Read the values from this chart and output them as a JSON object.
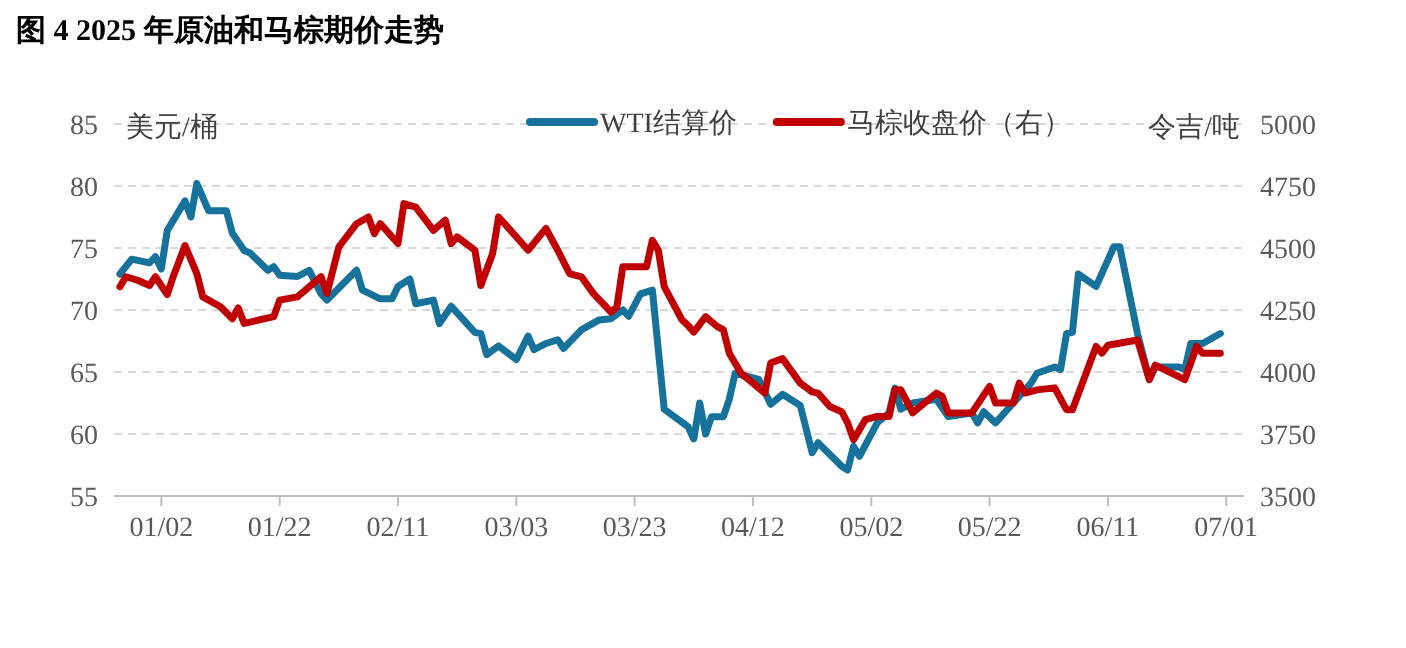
{
  "chart_data": {
    "type": "line",
    "title": "图 4 2025 年原油和马棕期价走势",
    "ylabel": "美元/桶",
    "y2label": "令吉/吨",
    "xlim": [
      "2024-12-25",
      "2025-07-04"
    ],
    "xticks": [
      {
        "value": "2025-01-02",
        "label": "01/02"
      },
      {
        "value": "2025-01-22",
        "label": "01/22"
      },
      {
        "value": "2025-02-11",
        "label": "02/11"
      },
      {
        "value": "2025-03-03",
        "label": "03/03"
      },
      {
        "value": "2025-03-23",
        "label": "03/23"
      },
      {
        "value": "2025-04-12",
        "label": "04/12"
      },
      {
        "value": "2025-05-02",
        "label": "05/02"
      },
      {
        "value": "2025-05-22",
        "label": "05/22"
      },
      {
        "value": "2025-06-11",
        "label": "06/11"
      },
      {
        "value": "2025-07-01",
        "label": "07/01"
      }
    ],
    "ylim": [
      55,
      85
    ],
    "yticks": [
      55,
      60,
      65,
      70,
      75,
      80,
      85
    ],
    "y2lim": [
      3500,
      5000
    ],
    "y2ticks": [
      3500,
      3750,
      4000,
      4250,
      4500,
      4750,
      5000
    ],
    "grid": "y",
    "legend": "top",
    "line_style": "solid",
    "series": [
      {
        "name": "WTI结算价",
        "color": "#17729b",
        "x": [
          "2024-12-26",
          "2024-12-28",
          "2024-12-31",
          "2025-01-01",
          "2025-01-02",
          "2025-01-03",
          "2025-01-06",
          "2025-01-07",
          "2025-01-08",
          "2025-01-10",
          "2025-01-13",
          "2025-01-14",
          "2025-01-16",
          "2025-01-17",
          "2025-01-20",
          "2025-01-21",
          "2025-01-22",
          "2025-01-25",
          "2025-01-27",
          "2025-01-29",
          "2025-01-30",
          "2025-02-04",
          "2025-02-05",
          "2025-02-08",
          "2025-02-10",
          "2025-02-11",
          "2025-02-13",
          "2025-02-14",
          "2025-02-17",
          "2025-02-18",
          "2025-02-20",
          "2025-02-24",
          "2025-02-25",
          "2025-02-26",
          "2025-02-28",
          "2025-03-03",
          "2025-03-05",
          "2025-03-06",
          "2025-03-08",
          "2025-03-10",
          "2025-03-11",
          "2025-03-14",
          "2025-03-17",
          "2025-03-19",
          "2025-03-21",
          "2025-03-22",
          "2025-03-24",
          "2025-03-26",
          "2025-03-28",
          "2025-04-01",
          "2025-04-02",
          "2025-04-03",
          "2025-04-04",
          "2025-04-05",
          "2025-04-07",
          "2025-04-08",
          "2025-04-09",
          "2025-04-13",
          "2025-04-15",
          "2025-04-17",
          "2025-04-20",
          "2025-04-22",
          "2025-04-23",
          "2025-04-27",
          "2025-04-28",
          "2025-04-29",
          "2025-04-30",
          "2025-05-03",
          "2025-05-05",
          "2025-05-06",
          "2025-05-07",
          "2025-05-09",
          "2025-05-13",
          "2025-05-15",
          "2025-05-19",
          "2025-05-20",
          "2025-05-21",
          "2025-05-23",
          "2025-05-26",
          "2025-05-29",
          "2025-05-30",
          "2025-06-02",
          "2025-06-03",
          "2025-06-04",
          "2025-06-05",
          "2025-06-06",
          "2025-06-09",
          "2025-06-12",
          "2025-06-13",
          "2025-06-16",
          "2025-06-18",
          "2025-06-19",
          "2025-06-23",
          "2025-06-24",
          "2025-06-25",
          "2025-06-27",
          "2025-06-30"
        ],
        "values": [
          72.9,
          74.1,
          73.8,
          74.3,
          73.3,
          76.4,
          78.8,
          77.5,
          80.2,
          78.0,
          78.0,
          76.2,
          74.8,
          74.6,
          73.2,
          73.5,
          72.8,
          72.7,
          73.2,
          71.3,
          70.8,
          73.2,
          71.6,
          70.9,
          70.9,
          71.9,
          72.5,
          70.5,
          70.8,
          68.9,
          70.3,
          68.2,
          68.1,
          66.4,
          67.1,
          66.0,
          67.9,
          66.8,
          67.3,
          67.6,
          66.9,
          68.4,
          69.2,
          69.3,
          70.0,
          69.5,
          71.3,
          71.6,
          62.0,
          60.6,
          59.6,
          62.5,
          60.0,
          61.4,
          61.4,
          62.8,
          64.9,
          64.4,
          62.4,
          63.2,
          62.3,
          58.5,
          59.3,
          57.4,
          57.1,
          59.0,
          58.2,
          60.9,
          61.7,
          63.7,
          62.0,
          62.5,
          62.8,
          61.4,
          61.7,
          60.9,
          61.8,
          60.9,
          62.5,
          64.1,
          64.9,
          65.4,
          65.2,
          68.1,
          68.2,
          72.9,
          71.9,
          75.1,
          75.1,
          68.1,
          64.4,
          65.4,
          65.4,
          65.2,
          67.3,
          67.3,
          68.1
        ]
      },
      {
        "name": "马棕收盘价（右）",
        "color": "#c00000",
        "axis": "y2",
        "x": [
          "2024-12-26",
          "2024-12-27",
          "2024-12-29",
          "2024-12-31",
          "2025-01-01",
          "2025-01-03",
          "2025-01-04",
          "2025-01-06",
          "2025-01-08",
          "2025-01-09",
          "2025-01-12",
          "2025-01-14",
          "2025-01-15",
          "2025-01-16",
          "2025-01-21",
          "2025-01-22",
          "2025-01-25",
          "2025-01-29",
          "2025-01-30",
          "2025-02-01",
          "2025-02-04",
          "2025-02-06",
          "2025-02-07",
          "2025-02-08",
          "2025-02-11",
          "2025-02-12",
          "2025-02-14",
          "2025-02-17",
          "2025-02-19",
          "2025-02-20",
          "2025-02-21",
          "2025-02-24",
          "2025-02-25",
          "2025-02-27",
          "2025-02-28",
          "2025-03-04",
          "2025-03-05",
          "2025-03-08",
          "2025-03-10",
          "2025-03-12",
          "2025-03-14",
          "2025-03-16",
          "2025-03-19",
          "2025-03-20",
          "2025-03-21",
          "2025-03-25",
          "2025-03-26",
          "2025-03-27",
          "2025-03-28",
          "2025-03-31",
          "2025-04-01",
          "2025-04-02",
          "2025-04-04",
          "2025-04-06",
          "2025-04-07",
          "2025-04-08",
          "2025-04-10",
          "2025-04-14",
          "2025-04-15",
          "2025-04-17",
          "2025-04-20",
          "2025-04-22",
          "2025-04-23",
          "2025-04-25",
          "2025-04-27",
          "2025-04-28",
          "2025-04-29",
          "2025-05-01",
          "2025-05-03",
          "2025-05-05",
          "2025-05-06",
          "2025-05-07",
          "2025-05-09",
          "2025-05-13",
          "2025-05-14",
          "2025-05-15",
          "2025-05-19",
          "2025-05-22",
          "2025-05-23",
          "2025-05-26",
          "2025-05-27",
          "2025-05-28",
          "2025-05-30",
          "2025-06-02",
          "2025-06-04",
          "2025-06-05",
          "2025-06-09",
          "2025-06-10",
          "2025-06-11",
          "2025-06-16",
          "2025-06-18",
          "2025-06-19",
          "2025-06-24",
          "2025-06-26",
          "2025-06-27",
          "2025-06-30"
        ],
        "values": [
          4344,
          4384,
          4370,
          4349,
          4384,
          4312,
          4384,
          4510,
          4397,
          4303,
          4263,
          4215,
          4258,
          4196,
          4223,
          4290,
          4303,
          4384,
          4317,
          4504,
          4598,
          4625,
          4558,
          4598,
          4518,
          4679,
          4665,
          4571,
          4612,
          4518,
          4545,
          4491,
          4349,
          4478,
          4625,
          4518,
          4491,
          4579,
          4491,
          4397,
          4384,
          4317,
          4242,
          4263,
          4424,
          4424,
          4531,
          4491,
          4344,
          4210,
          4188,
          4161,
          4223,
          4183,
          4170,
          4076,
          3995,
          3915,
          4036,
          4054,
          3955,
          3920,
          3915,
          3861,
          3840,
          3795,
          3727,
          3808,
          3821,
          3821,
          3928,
          3928,
          3835,
          3915,
          3902,
          3835,
          3835,
          3942,
          3875,
          3875,
          3955,
          3915,
          3928,
          3936,
          3848,
          3848,
          4103,
          4076,
          4108,
          4129,
          3969,
          4028,
          3969,
          4103,
          4076,
          4076
        ]
      }
    ]
  }
}
